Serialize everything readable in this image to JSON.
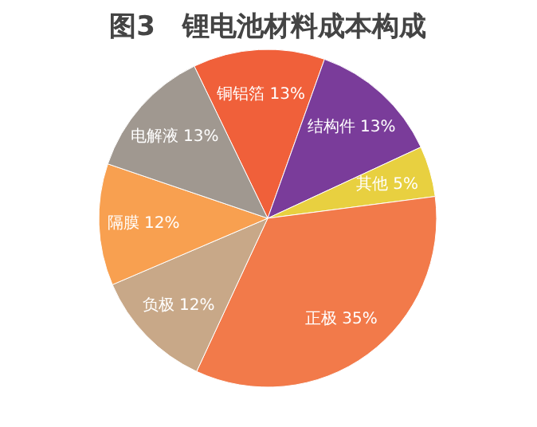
{
  "chart_data": {
    "type": "pie",
    "title": "图3　锂电池材料成本构成",
    "categories": [
      "铜铝箔",
      "结构件",
      "其他",
      "正极",
      "负极",
      "隔膜",
      "电解液"
    ],
    "values": [
      13,
      13,
      5,
      35,
      12,
      12,
      13
    ],
    "value_labels": [
      "13%",
      "13%",
      "5%",
      "35%",
      "12%",
      "12%",
      "13%"
    ],
    "colors": [
      "#f0603a",
      "#7a3c9a",
      "#e8d040",
      "#f27a4a",
      "#c8a888",
      "#f8a050",
      "#a09890"
    ],
    "legend": false
  }
}
